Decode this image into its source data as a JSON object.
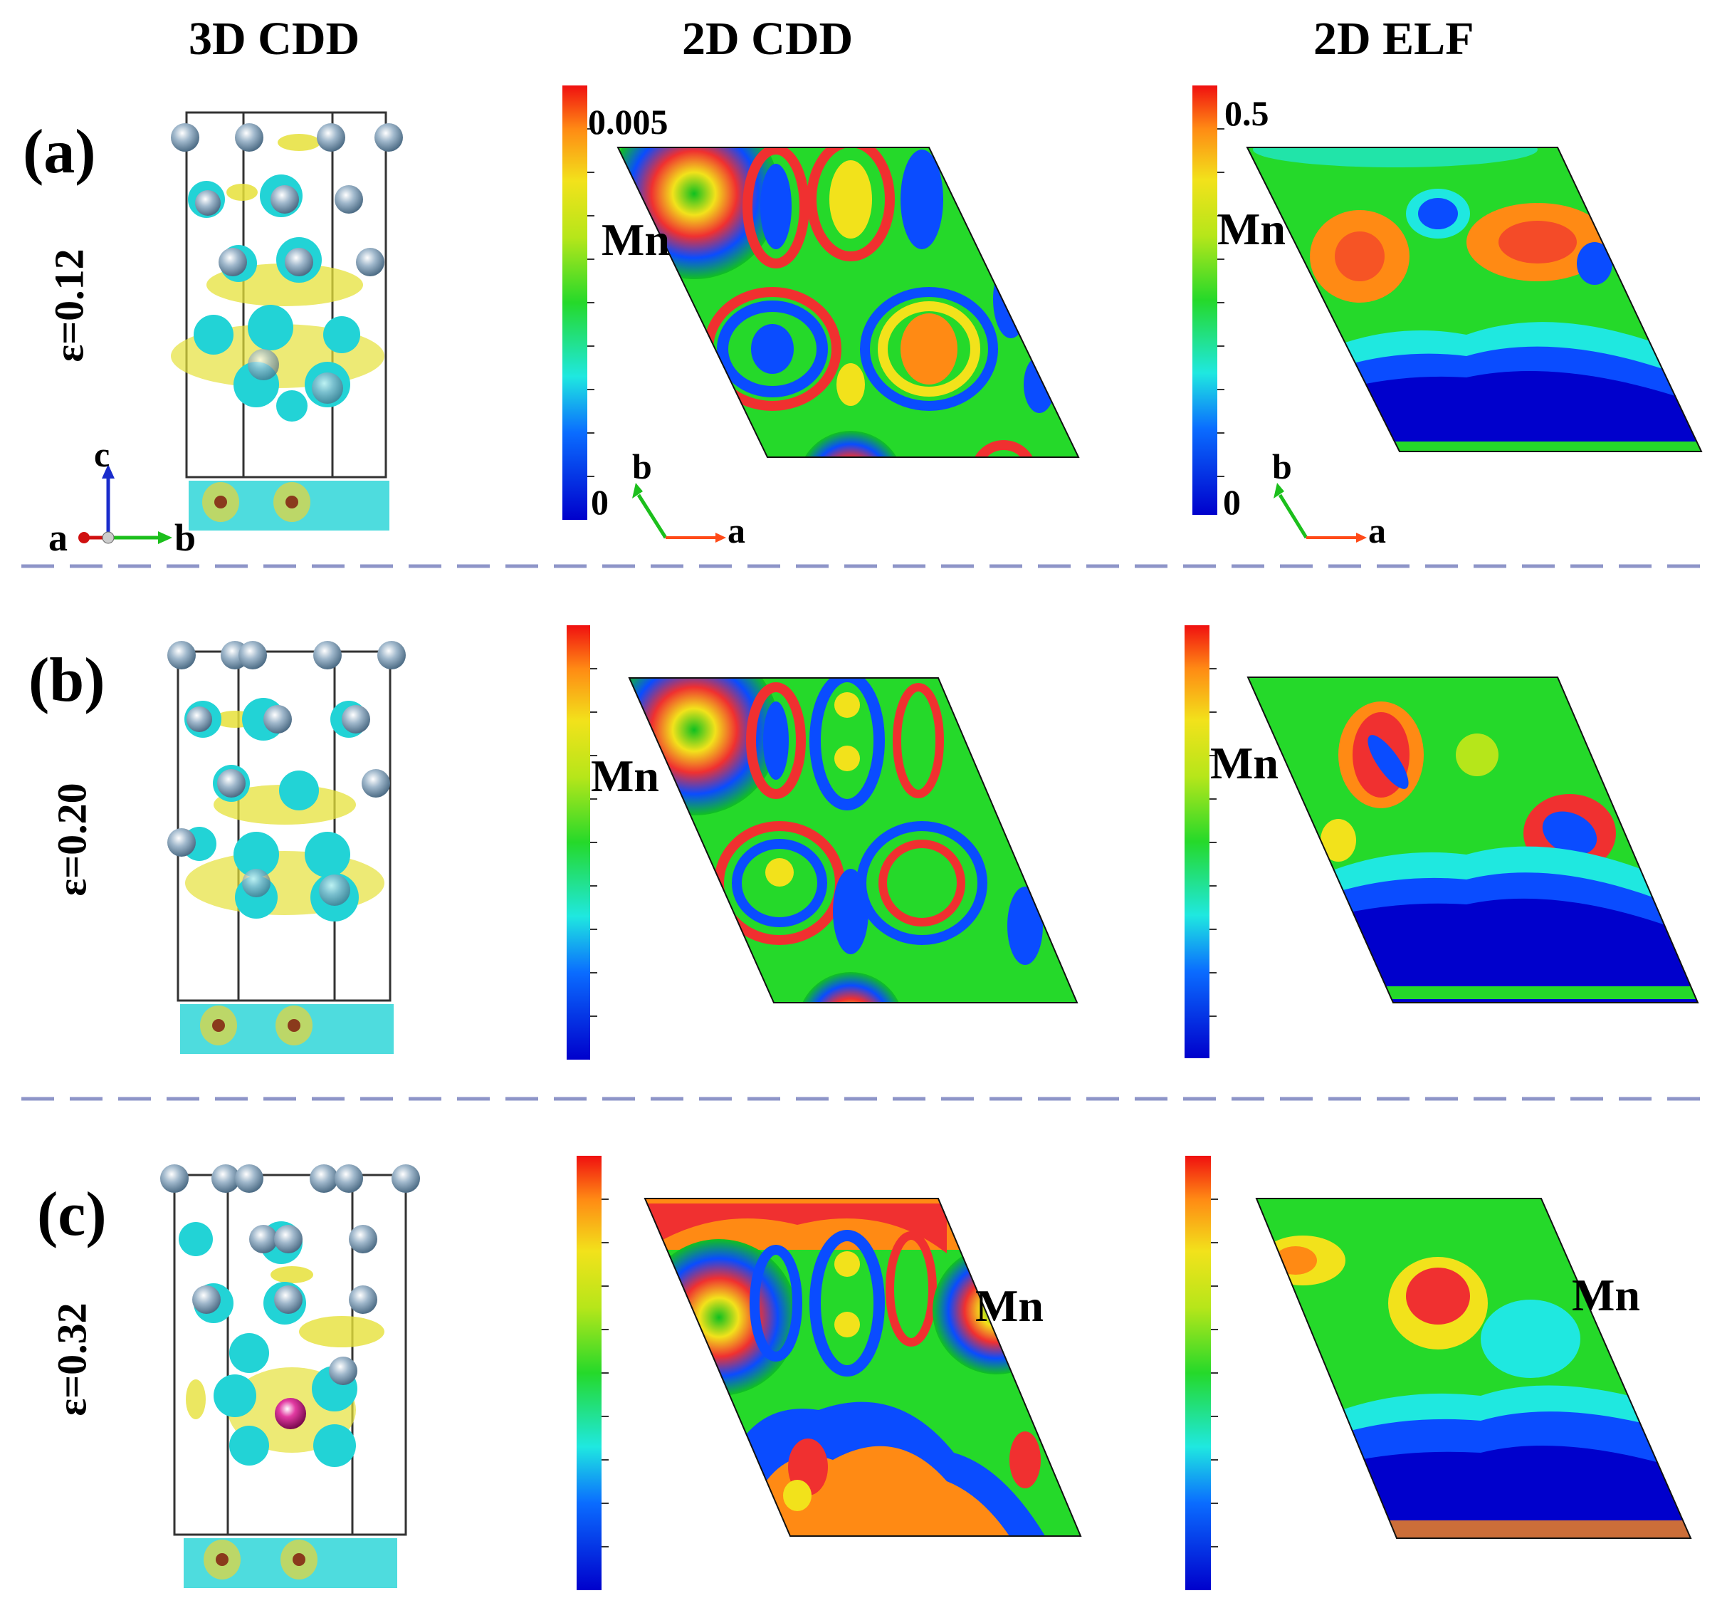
{
  "headers": {
    "col1": "3D CDD",
    "col2": "2D CDD",
    "col3": "2D ELF"
  },
  "rows": [
    {
      "label": "(a)",
      "strain": "ε=0.12"
    },
    {
      "label": "(b)",
      "strain": "ε=0.20"
    },
    {
      "label": "(c)",
      "strain": "ε=0.32"
    }
  ],
  "cdd_colorbar": {
    "max_label": "0.005",
    "min_label": "0"
  },
  "elf_colorbar": {
    "max_label": "0.5",
    "min_label": "0"
  },
  "atom_label": "Mn",
  "axes": {
    "a": "a",
    "b": "b",
    "c": "c"
  },
  "colors": {
    "charge_gain": "#e6e13a",
    "charge_loss": "#22d3d6",
    "atom": "#8aa6bd",
    "mn_atom": "#d0208a",
    "divider": "#8e95c8"
  }
}
